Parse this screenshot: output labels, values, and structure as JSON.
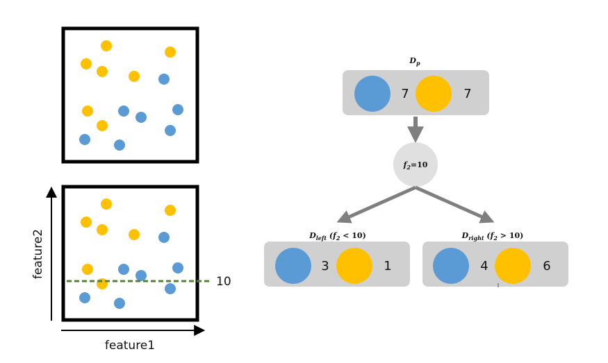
{
  "colors": {
    "blue": "#5b9bd5",
    "yellow": "#ffc000",
    "node_bg": "#d0d0d0",
    "split_node": "#e0e0e0",
    "arrow": "#7f7f7f",
    "threshold_line": "#548235",
    "frame": "#000000"
  },
  "plots": {
    "axis_x_label": "feature1",
    "axis_y_label": "feature2",
    "threshold_value": "10"
  },
  "tree": {
    "parent": {
      "label": "D",
      "label_sub": "p",
      "blue_count": "7",
      "yellow_count": "7"
    },
    "split": {
      "f": "f",
      "f_sub": "2",
      "rest": "=10"
    },
    "left": {
      "label": "D",
      "label_sub": "left",
      "cond_open": " (",
      "cond_f": "f",
      "cond_f_sub": "2",
      "cond_rest": " < 10)",
      "blue_count": "3",
      "yellow_count": "1"
    },
    "right": {
      "label": "D",
      "label_sub": "right",
      "cond_open": " (",
      "cond_f": "f",
      "cond_f_sub": "2",
      "cond_rest": " > 10)",
      "blue_count": "4",
      "yellow_count": "6"
    }
  }
}
